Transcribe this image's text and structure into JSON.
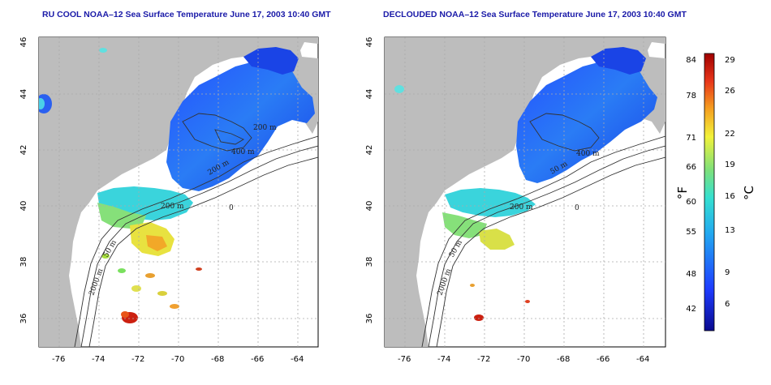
{
  "maps": [
    {
      "title": "RU COOL NOAA–12 Sea Surface Temperature June 17, 2003 10:40 GMT",
      "contour_labels": [
        "200 m",
        "400 m",
        "200 m",
        "2000 m",
        "50 m",
        "200 m",
        "0"
      ]
    },
    {
      "title": "DECLOUDED NOAA–12 Sea Surface Temperature June 17, 2003 10:40 GMT",
      "contour_labels": [
        "400 m",
        "50 m",
        "200 m",
        "2000 m",
        "50 m",
        "0"
      ]
    }
  ],
  "axes": {
    "x_ticks": [
      "-76",
      "-74",
      "-72",
      "-70",
      "-68",
      "-66",
      "-64"
    ],
    "y_ticks": [
      "46",
      "44",
      "42",
      "40",
      "38",
      "36"
    ],
    "lon_range": [
      -77.0,
      -63.0
    ],
    "lat_range": [
      35.0,
      46.0
    ]
  },
  "colorbar": {
    "fahrenheit_ticks": [
      "84",
      "78",
      "71",
      "66",
      "60",
      "55",
      "48",
      "42"
    ],
    "celsius_ticks": [
      "29",
      "26",
      "22",
      "19",
      "16",
      "13",
      "9",
      "6"
    ],
    "label_f": "°F",
    "label_c": "°C"
  },
  "colors": {
    "land": "#bdbdbd",
    "water_background": "#ffffff",
    "title": "#1a1aa8",
    "contour": "#333333"
  }
}
